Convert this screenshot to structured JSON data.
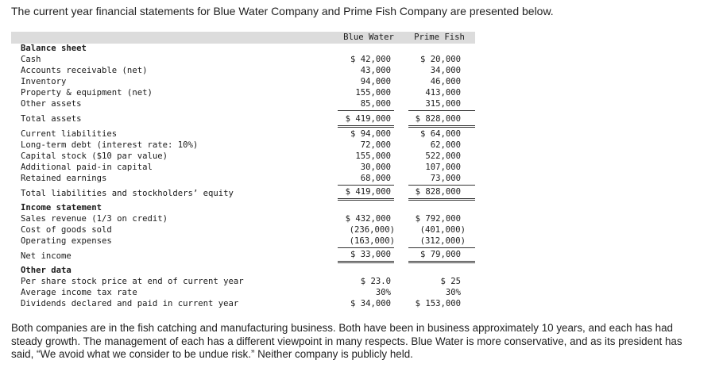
{
  "intro": "The current year financial statements for Blue Water Company and Prime Fish Company are presented below.",
  "columns": [
    "Blue Water",
    "Prime Fish"
  ],
  "sections": [
    {
      "title": "Balance sheet",
      "rows": [
        {
          "label": "Cash",
          "bw": "$ 42,000",
          "pf": "$ 20,000"
        },
        {
          "label": "Accounts receivable (net)",
          "bw": "43,000",
          "pf": "34,000"
        },
        {
          "label": "Inventory",
          "bw": "94,000",
          "pf": "46,000"
        },
        {
          "label": "Property & equipment (net)",
          "bw": "155,000",
          "pf": "413,000"
        },
        {
          "label": "Other assets",
          "bw": "85,000",
          "pf": "315,000"
        },
        {
          "label": "Total assets",
          "bw": "$ 419,000",
          "pf": "$ 828,000"
        },
        {
          "label": "Current liabilities",
          "bw": "$ 94,000",
          "pf": "$ 64,000"
        },
        {
          "label": "Long-term debt (interest rate: 10%)",
          "bw": "72,000",
          "pf": "62,000"
        },
        {
          "label": "Capital stock ($10 par value)",
          "bw": "155,000",
          "pf": "522,000"
        },
        {
          "label": "Additional paid-in capital",
          "bw": "30,000",
          "pf": "107,000"
        },
        {
          "label": "Retained earnings",
          "bw": "68,000",
          "pf": "73,000"
        },
        {
          "label": "Total liabilities and stockholders’ equity",
          "bw": "$ 419,000",
          "pf": "$ 828,000"
        }
      ]
    },
    {
      "title": "Income statement",
      "rows": [
        {
          "label": "Sales revenue (1/3 on credit)",
          "bw": "$ 432,000",
          "pf": "$ 792,000"
        },
        {
          "label": "Cost of goods sold",
          "bw": "(236,000)",
          "pf": "(401,000)"
        },
        {
          "label": "Operating expenses",
          "bw": "(163,000)",
          "pf": "(312,000)"
        },
        {
          "label": "Net income",
          "bw": "$ 33,000",
          "pf": "$ 79,000"
        }
      ]
    },
    {
      "title": "Other data",
      "rows": [
        {
          "label": "Per share stock price at end of current year",
          "bw": "$ 23.0",
          "pf": "$ 25"
        },
        {
          "label": "Average income tax rate",
          "bw": "30%",
          "pf": "30%"
        },
        {
          "label": "Dividends declared and paid in current year",
          "bw": "$ 34,000",
          "pf": "$ 153,000"
        }
      ]
    }
  ],
  "paragraph": "Both companies are in the fish catching and manufacturing business. Both have been in business approximately 10 years, and each has had steady growth. The management of each has a different viewpoint in many respects. Blue Water is more conservative, and as its president has said, “We avoid what we consider to be undue risk.” Neither company is publicly held."
}
